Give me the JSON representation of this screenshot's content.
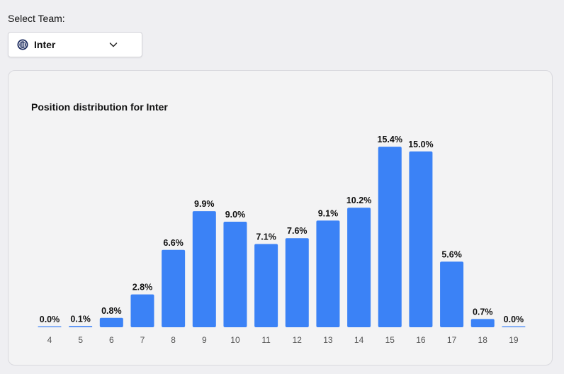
{
  "select_team": {
    "label": "Select Team:",
    "value": "Inter",
    "logo_icon": "inter-crest-icon",
    "chevron_icon": "chevron-down-icon"
  },
  "chart_data": {
    "type": "bar",
    "title": "Position distribution for Inter",
    "categories": [
      "4",
      "5",
      "6",
      "7",
      "8",
      "9",
      "10",
      "11",
      "12",
      "13",
      "14",
      "15",
      "16",
      "17",
      "18",
      "19"
    ],
    "values": [
      0.0,
      0.1,
      0.8,
      2.8,
      6.6,
      9.9,
      9.0,
      7.1,
      7.6,
      9.1,
      10.2,
      15.4,
      15.0,
      5.6,
      0.7,
      0.0
    ],
    "value_labels": [
      "0.0%",
      "0.1%",
      "0.8%",
      "2.8%",
      "6.6%",
      "9.9%",
      "9.0%",
      "7.1%",
      "7.6%",
      "9.1%",
      "10.2%",
      "15.4%",
      "15.0%",
      "5.6%",
      "0.7%",
      "0.0%"
    ],
    "bar_color": "#3b82f6",
    "grid": false,
    "legend": "none"
  }
}
